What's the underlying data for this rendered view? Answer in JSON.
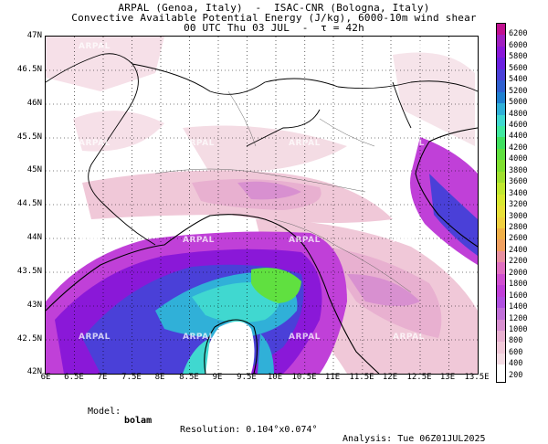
{
  "header": {
    "line1": "ARPAL (Genoa, Italy)  -  ISAC-CNR (Bologna, Italy)",
    "line2": "Convective Available Potential Energy (J/kg), 6000-10m wind shear",
    "line3": "00 UTC Thu 03 JUL  -  τ = 42h"
  },
  "map": {
    "lat_labels": [
      "47N",
      "46.5N",
      "46N",
      "45.5N",
      "45N",
      "44.5N",
      "44N",
      "43.5N",
      "43N",
      "42.5N",
      "42N"
    ],
    "lon_labels": [
      "6E",
      "6.5E",
      "7E",
      "7.5E",
      "8E",
      "8.5E",
      "9E",
      "9.5E",
      "10E",
      "10.5E",
      "11E",
      "11.5E",
      "12E",
      "12.5E",
      "13E",
      "13.5E"
    ],
    "watermark_text": "ARPAL"
  },
  "colorbar": {
    "labels": [
      "6200",
      "6000",
      "5800",
      "5600",
      "5400",
      "5200",
      "5000",
      "4800",
      "4600",
      "4400",
      "4200",
      "4000",
      "3800",
      "3600",
      "3400",
      "3200",
      "3000",
      "2800",
      "2600",
      "2400",
      "2200",
      "2000",
      "1800",
      "1600",
      "1400",
      "1200",
      "1000",
      "800",
      "600",
      "400",
      "200"
    ],
    "colors": [
      "#c01090",
      "#a020c0",
      "#8a18d8",
      "#6a20e0",
      "#4a40d8",
      "#3060d0",
      "#2080d0",
      "#30b0d8",
      "#40d8d0",
      "#40e8a0",
      "#40e060",
      "#60e040",
      "#80e030",
      "#a0e030",
      "#c0e830",
      "#d8e830",
      "#e8e038",
      "#f0d040",
      "#f0b048",
      "#f0a060",
      "#e890a0",
      "#e070c0",
      "#d050d0",
      "#c040d8",
      "#b050e0",
      "#c070d8",
      "#d890d0",
      "#e8b0d0",
      "#f0c8d8",
      "#f4dce4",
      "#ffffff"
    ]
  },
  "footer": {
    "model_label": "Model:",
    "model_value": "bolam",
    "resolution": "Resolution: 0.104°x0.074°",
    "analysis": "Analysis: Tue 06Z01JUL2025"
  }
}
